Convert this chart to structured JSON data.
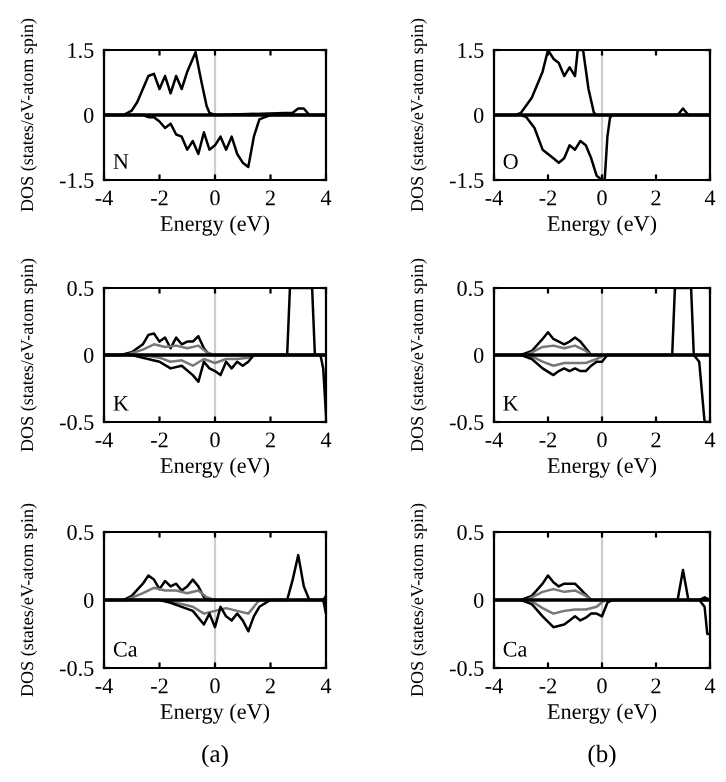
{
  "chart_data": [
    {
      "type": "line",
      "xlabel": "Energy (eV)",
      "ylabel": "DOS (states/eV-atom spin)",
      "xlim": [
        -4,
        4
      ],
      "xticks": [
        -4,
        -2,
        0,
        2,
        4
      ],
      "ylim": [
        -1.5,
        1.5
      ],
      "yticks": [
        -1.5,
        0,
        1.5
      ],
      "grid": false,
      "legend": false,
      "annotations": [
        "N"
      ],
      "ref_lines": [
        {
          "axis": "x",
          "value": 0,
          "color": "#cccccc"
        },
        {
          "axis": "y",
          "value": 0,
          "color": "#000000"
        }
      ],
      "series": [
        {
          "color": "#000000",
          "x": [
            -4,
            -3.3,
            -3.0,
            -2.8,
            -2.6,
            -2.4,
            -2.2,
            -2.0,
            -1.8,
            -1.6,
            -1.4,
            -1.2,
            -1.0,
            -0.8,
            -0.7,
            -0.5,
            -0.3,
            -0.2,
            0,
            2.8,
            3.0,
            3.2,
            3.4,
            4
          ],
          "values": [
            0,
            0,
            0.1,
            0.3,
            0.6,
            0.9,
            0.95,
            0.6,
            0.9,
            0.5,
            0.9,
            0.6,
            1.0,
            1.3,
            1.45,
            0.8,
            0.2,
            0.05,
            0,
            0.05,
            0.15,
            0.15,
            0,
            0
          ]
        },
        {
          "color": "#000000",
          "x": [
            -4,
            -2.6,
            -2.4,
            -2.2,
            -2.0,
            -1.8,
            -1.6,
            -1.4,
            -1.2,
            -1.0,
            -0.8,
            -0.6,
            -0.4,
            -0.2,
            0,
            0.2,
            0.4,
            0.6,
            0.8,
            1.0,
            1.2,
            1.4,
            1.6,
            1.8,
            2.0,
            4
          ],
          "values": [
            0,
            0,
            -0.05,
            -0.05,
            -0.15,
            -0.3,
            -0.2,
            -0.45,
            -0.5,
            -0.8,
            -0.6,
            -0.9,
            -0.4,
            -0.8,
            -0.7,
            -0.5,
            -0.8,
            -0.5,
            -0.9,
            -1.1,
            -1.2,
            -0.5,
            -0.1,
            -0.05,
            0,
            0
          ]
        }
      ]
    },
    {
      "type": "line",
      "xlabel": "Energy (eV)",
      "ylabel": "DOS (states/eV-atom spin)",
      "xlim": [
        -4,
        4
      ],
      "xticks": [
        -4,
        -2,
        0,
        2,
        4
      ],
      "ylim": [
        -1.5,
        1.5
      ],
      "yticks": [
        -1.5,
        0,
        1.5
      ],
      "grid": false,
      "legend": false,
      "annotations": [
        "O"
      ],
      "ref_lines": [
        {
          "axis": "x",
          "value": 0,
          "color": "#cccccc"
        },
        {
          "axis": "y",
          "value": 0,
          "color": "#000000"
        }
      ],
      "series": [
        {
          "color": "#000000",
          "x": [
            -4,
            -3.2,
            -3.0,
            -2.6,
            -2.2,
            -2.0,
            -1.8,
            -1.6,
            -1.4,
            -1.2,
            -1.0,
            -0.9,
            -0.7,
            -0.5,
            -0.3,
            -0.2,
            2.8,
            3.0,
            3.2,
            4
          ],
          "values": [
            0,
            0,
            0.05,
            0.4,
            1.0,
            1.5,
            1.3,
            1.2,
            0.9,
            1.1,
            0.9,
            1.5,
            1.5,
            0.6,
            0.05,
            0,
            0,
            0.15,
            0,
            0
          ]
        },
        {
          "color": "#000000",
          "x": [
            -4,
            -3.0,
            -2.8,
            -2.5,
            -2.2,
            -2.0,
            -1.8,
            -1.6,
            -1.4,
            -1.2,
            -1.0,
            -0.8,
            -0.6,
            -0.4,
            -0.2,
            0,
            0.1,
            0.2,
            0.3,
            0.4,
            4
          ],
          "values": [
            0,
            0,
            -0.05,
            -0.3,
            -0.8,
            -0.9,
            -1.0,
            -1.1,
            -1.0,
            -0.7,
            -0.8,
            -0.6,
            -0.7,
            -1.0,
            -1.4,
            -1.5,
            -1.5,
            -0.5,
            -0.05,
            0,
            0
          ]
        }
      ]
    },
    {
      "type": "line",
      "xlabel": "Energy (eV)",
      "ylabel": "DOS (states/eV-atom spin)",
      "xlim": [
        -4,
        4
      ],
      "xticks": [
        -4,
        -2,
        0,
        2,
        4
      ],
      "ylim": [
        -0.5,
        0.5
      ],
      "yticks": [
        -0.5,
        0,
        0.5
      ],
      "grid": false,
      "legend": false,
      "annotations": [
        "K"
      ],
      "ref_lines": [
        {
          "axis": "x",
          "value": 0,
          "color": "#cccccc"
        },
        {
          "axis": "y",
          "value": 0,
          "color": "#000000"
        }
      ],
      "series": [
        {
          "color": "#000000",
          "x": [
            -4,
            -3.4,
            -3.0,
            -2.6,
            -2.4,
            -2.2,
            -2.0,
            -1.8,
            -1.6,
            -1.4,
            -1.2,
            -1.0,
            -0.8,
            -0.6,
            -0.4,
            -0.2,
            2.6,
            2.7,
            3.5,
            3.6,
            4.0
          ],
          "values": [
            0,
            0,
            0.02,
            0.08,
            0.15,
            0.16,
            0.1,
            0.13,
            0.05,
            0.13,
            0.08,
            0.1,
            0.1,
            0.14,
            0.05,
            0,
            0,
            0.5,
            0.5,
            0,
            0
          ]
        },
        {
          "color": "#777777",
          "x": [
            -4,
            -3.2,
            -2.6,
            -2.2,
            -1.8,
            -1.4,
            -1.0,
            -0.6,
            -0.3,
            0,
            4
          ],
          "values": [
            0,
            0,
            0.04,
            0.08,
            0.06,
            0.07,
            0.05,
            0.07,
            0.02,
            0,
            0
          ]
        },
        {
          "color": "#777777",
          "x": [
            -4,
            -2.6,
            -2.0,
            -1.6,
            -1.2,
            -0.8,
            -0.4,
            0,
            0.4,
            0.8,
            1.2,
            1.4,
            4
          ],
          "values": [
            0,
            0,
            -0.02,
            -0.05,
            -0.04,
            -0.08,
            -0.03,
            -0.06,
            -0.03,
            -0.03,
            -0.02,
            0,
            0
          ]
        },
        {
          "color": "#000000",
          "x": [
            -4,
            -3.0,
            -2.6,
            -2.0,
            -1.6,
            -1.2,
            -0.8,
            -0.6,
            -0.4,
            -0.2,
            0,
            0.2,
            0.4,
            0.6,
            0.8,
            1.0,
            1.2,
            1.4,
            3.8,
            3.9,
            4.0
          ],
          "values": [
            0,
            0,
            -0.02,
            -0.05,
            -0.1,
            -0.08,
            -0.15,
            -0.2,
            -0.05,
            -0.1,
            -0.12,
            -0.15,
            -0.05,
            -0.1,
            -0.05,
            -0.08,
            -0.05,
            0,
            0,
            -0.1,
            -0.45
          ]
        }
      ]
    },
    {
      "type": "line",
      "xlabel": "Energy (eV)",
      "ylabel": "DOS (states/eV-atom spin)",
      "xlim": [
        -4,
        4
      ],
      "xticks": [
        -4,
        -2,
        0,
        2,
        4
      ],
      "ylim": [
        -0.5,
        0.5
      ],
      "yticks": [
        -0.5,
        0,
        0.5
      ],
      "grid": false,
      "legend": false,
      "annotations": [
        "K"
      ],
      "ref_lines": [
        {
          "axis": "x",
          "value": 0,
          "color": "#cccccc"
        },
        {
          "axis": "y",
          "value": 0,
          "color": "#000000"
        }
      ],
      "series": [
        {
          "color": "#000000",
          "x": [
            -4,
            -3.0,
            -2.6,
            -2.2,
            -2.0,
            -1.8,
            -1.6,
            -1.4,
            -1.2,
            -1.0,
            -0.8,
            -0.6,
            -0.4,
            2.6,
            2.7,
            3.3,
            3.4,
            4
          ],
          "values": [
            0,
            0,
            0.03,
            0.12,
            0.17,
            0.12,
            0.1,
            0.08,
            0.1,
            0.13,
            0.1,
            0.05,
            0,
            0,
            0.5,
            0.5,
            0,
            0
          ]
        },
        {
          "color": "#777777",
          "x": [
            -2.8,
            -2.2,
            -1.8,
            -1.4,
            -1.0,
            -0.6,
            -0.4
          ],
          "values": [
            0,
            0.06,
            0.07,
            0.05,
            0.07,
            0.03,
            0
          ]
        },
        {
          "color": "#777777",
          "x": [
            -2.6,
            -2.2,
            -1.8,
            -1.4,
            -1.0,
            -0.6,
            -0.2,
            0.1
          ],
          "values": [
            -0.01,
            -0.05,
            -0.08,
            -0.06,
            -0.06,
            -0.06,
            -0.03,
            0
          ]
        },
        {
          "color": "#000000",
          "x": [
            -4,
            -3.0,
            -2.6,
            -2.2,
            -1.8,
            -1.6,
            -1.4,
            -1.2,
            -1.0,
            -0.8,
            -0.6,
            -0.4,
            -0.2,
            0,
            0.2,
            3.4,
            3.6,
            3.8,
            4
          ],
          "values": [
            0,
            0,
            -0.03,
            -0.1,
            -0.15,
            -0.12,
            -0.1,
            -0.12,
            -0.1,
            -0.12,
            -0.12,
            -0.08,
            -0.05,
            -0.05,
            0,
            0,
            -0.05,
            -0.5,
            -0.5
          ]
        }
      ]
    },
    {
      "type": "line",
      "xlabel": "Energy (eV)",
      "ylabel": "DOS (states/eV-atom spin)",
      "xlim": [
        -4,
        4
      ],
      "xticks": [
        -4,
        -2,
        0,
        2,
        4
      ],
      "ylim": [
        -0.5,
        0.5
      ],
      "yticks": [
        -0.5,
        0,
        0.5
      ],
      "grid": false,
      "legend": false,
      "annotations": [
        "Ca",
        "(a)"
      ],
      "ref_lines": [
        {
          "axis": "x",
          "value": 0,
          "color": "#cccccc"
        },
        {
          "axis": "y",
          "value": 0,
          "color": "#000000"
        }
      ],
      "series": [
        {
          "color": "#000000",
          "x": [
            -4,
            -3.3,
            -3.0,
            -2.6,
            -2.4,
            -2.2,
            -2.0,
            -1.8,
            -1.6,
            -1.4,
            -1.2,
            -1.0,
            -0.8,
            -0.6,
            -0.4,
            -0.2,
            2.6,
            2.8,
            3.0,
            3.2,
            3.4,
            3.9,
            4.0
          ],
          "values": [
            0,
            0,
            0.03,
            0.12,
            0.18,
            0.15,
            0.08,
            0.14,
            0.1,
            0.12,
            0.07,
            0.1,
            0.15,
            0.1,
            0.02,
            0,
            0,
            0.15,
            0.33,
            0.1,
            0,
            0,
            0.03
          ]
        },
        {
          "color": "#777777",
          "x": [
            -3.2,
            -2.6,
            -2.2,
            -1.8,
            -1.4,
            -1.0,
            -0.6,
            -0.3,
            0
          ],
          "values": [
            0,
            0.05,
            0.09,
            0.07,
            0.07,
            0.05,
            0.07,
            0.02,
            0
          ]
        },
        {
          "color": "#777777",
          "x": [
            -2.0,
            -1.2,
            -0.8,
            -0.4,
            0,
            0.4,
            0.8,
            1.2,
            1.6
          ],
          "values": [
            0,
            -0.03,
            -0.05,
            -0.1,
            -0.08,
            -0.06,
            -0.08,
            -0.1,
            0
          ]
        },
        {
          "color": "#000000",
          "x": [
            -4,
            -2.0,
            -1.6,
            -1.2,
            -0.8,
            -0.4,
            -0.2,
            0,
            0.2,
            0.4,
            0.6,
            0.8,
            1.0,
            1.2,
            1.4,
            1.6,
            2.0,
            3.9,
            4.0
          ],
          "values": [
            0,
            0,
            -0.02,
            -0.05,
            -0.08,
            -0.18,
            -0.1,
            -0.2,
            -0.05,
            -0.12,
            -0.15,
            -0.1,
            -0.15,
            -0.23,
            -0.12,
            -0.05,
            0,
            0,
            -0.1
          ]
        }
      ]
    },
    {
      "type": "line",
      "xlabel": "Energy (eV)",
      "ylabel": "DOS (states/eV-atom spin)",
      "xlim": [
        -4,
        4
      ],
      "xticks": [
        -4,
        -2,
        0,
        2,
        4
      ],
      "ylim": [
        -0.5,
        0.5
      ],
      "yticks": [
        -0.5,
        0,
        0.5
      ],
      "grid": false,
      "legend": false,
      "annotations": [
        "Ca",
        "(b)"
      ],
      "ref_lines": [
        {
          "axis": "x",
          "value": 0,
          "color": "#cccccc"
        },
        {
          "axis": "y",
          "value": 0,
          "color": "#000000"
        }
      ],
      "series": [
        {
          "color": "#000000",
          "x": [
            -4,
            -3.0,
            -2.6,
            -2.2,
            -2.0,
            -1.8,
            -1.6,
            -1.4,
            -1.0,
            -0.8,
            -0.6,
            -0.4,
            2.8,
            3.0,
            3.2,
            3.6,
            3.8,
            4
          ],
          "values": [
            0,
            0,
            0.03,
            0.12,
            0.18,
            0.13,
            0.1,
            0.12,
            0.12,
            0.08,
            0.04,
            0,
            0,
            0.22,
            0,
            0,
            0.02,
            0
          ]
        },
        {
          "color": "#777777",
          "x": [
            -2.8,
            -2.2,
            -1.8,
            -1.4,
            -1.0,
            -0.6,
            -0.4
          ],
          "values": [
            0,
            0.06,
            0.08,
            0.06,
            0.07,
            0.03,
            0
          ]
        },
        {
          "color": "#777777",
          "x": [
            -2.6,
            -2.2,
            -1.8,
            -1.4,
            -1.0,
            -0.6,
            -0.2,
            0.1
          ],
          "values": [
            -0.01,
            -0.06,
            -0.1,
            -0.08,
            -0.07,
            -0.07,
            -0.05,
            0
          ]
        },
        {
          "color": "#000000",
          "x": [
            -4,
            -3.0,
            -2.6,
            -2.2,
            -1.8,
            -1.4,
            -1.2,
            -1.0,
            -0.8,
            -0.6,
            -0.4,
            -0.2,
            0,
            0.2,
            0.4,
            3.6,
            3.8,
            3.9,
            4.0
          ],
          "values": [
            0,
            0,
            -0.03,
            -0.12,
            -0.2,
            -0.18,
            -0.15,
            -0.12,
            -0.15,
            -0.13,
            -0.1,
            -0.1,
            -0.12,
            -0.02,
            0,
            0,
            -0.05,
            -0.25,
            -0.25
          ]
        }
      ]
    }
  ]
}
